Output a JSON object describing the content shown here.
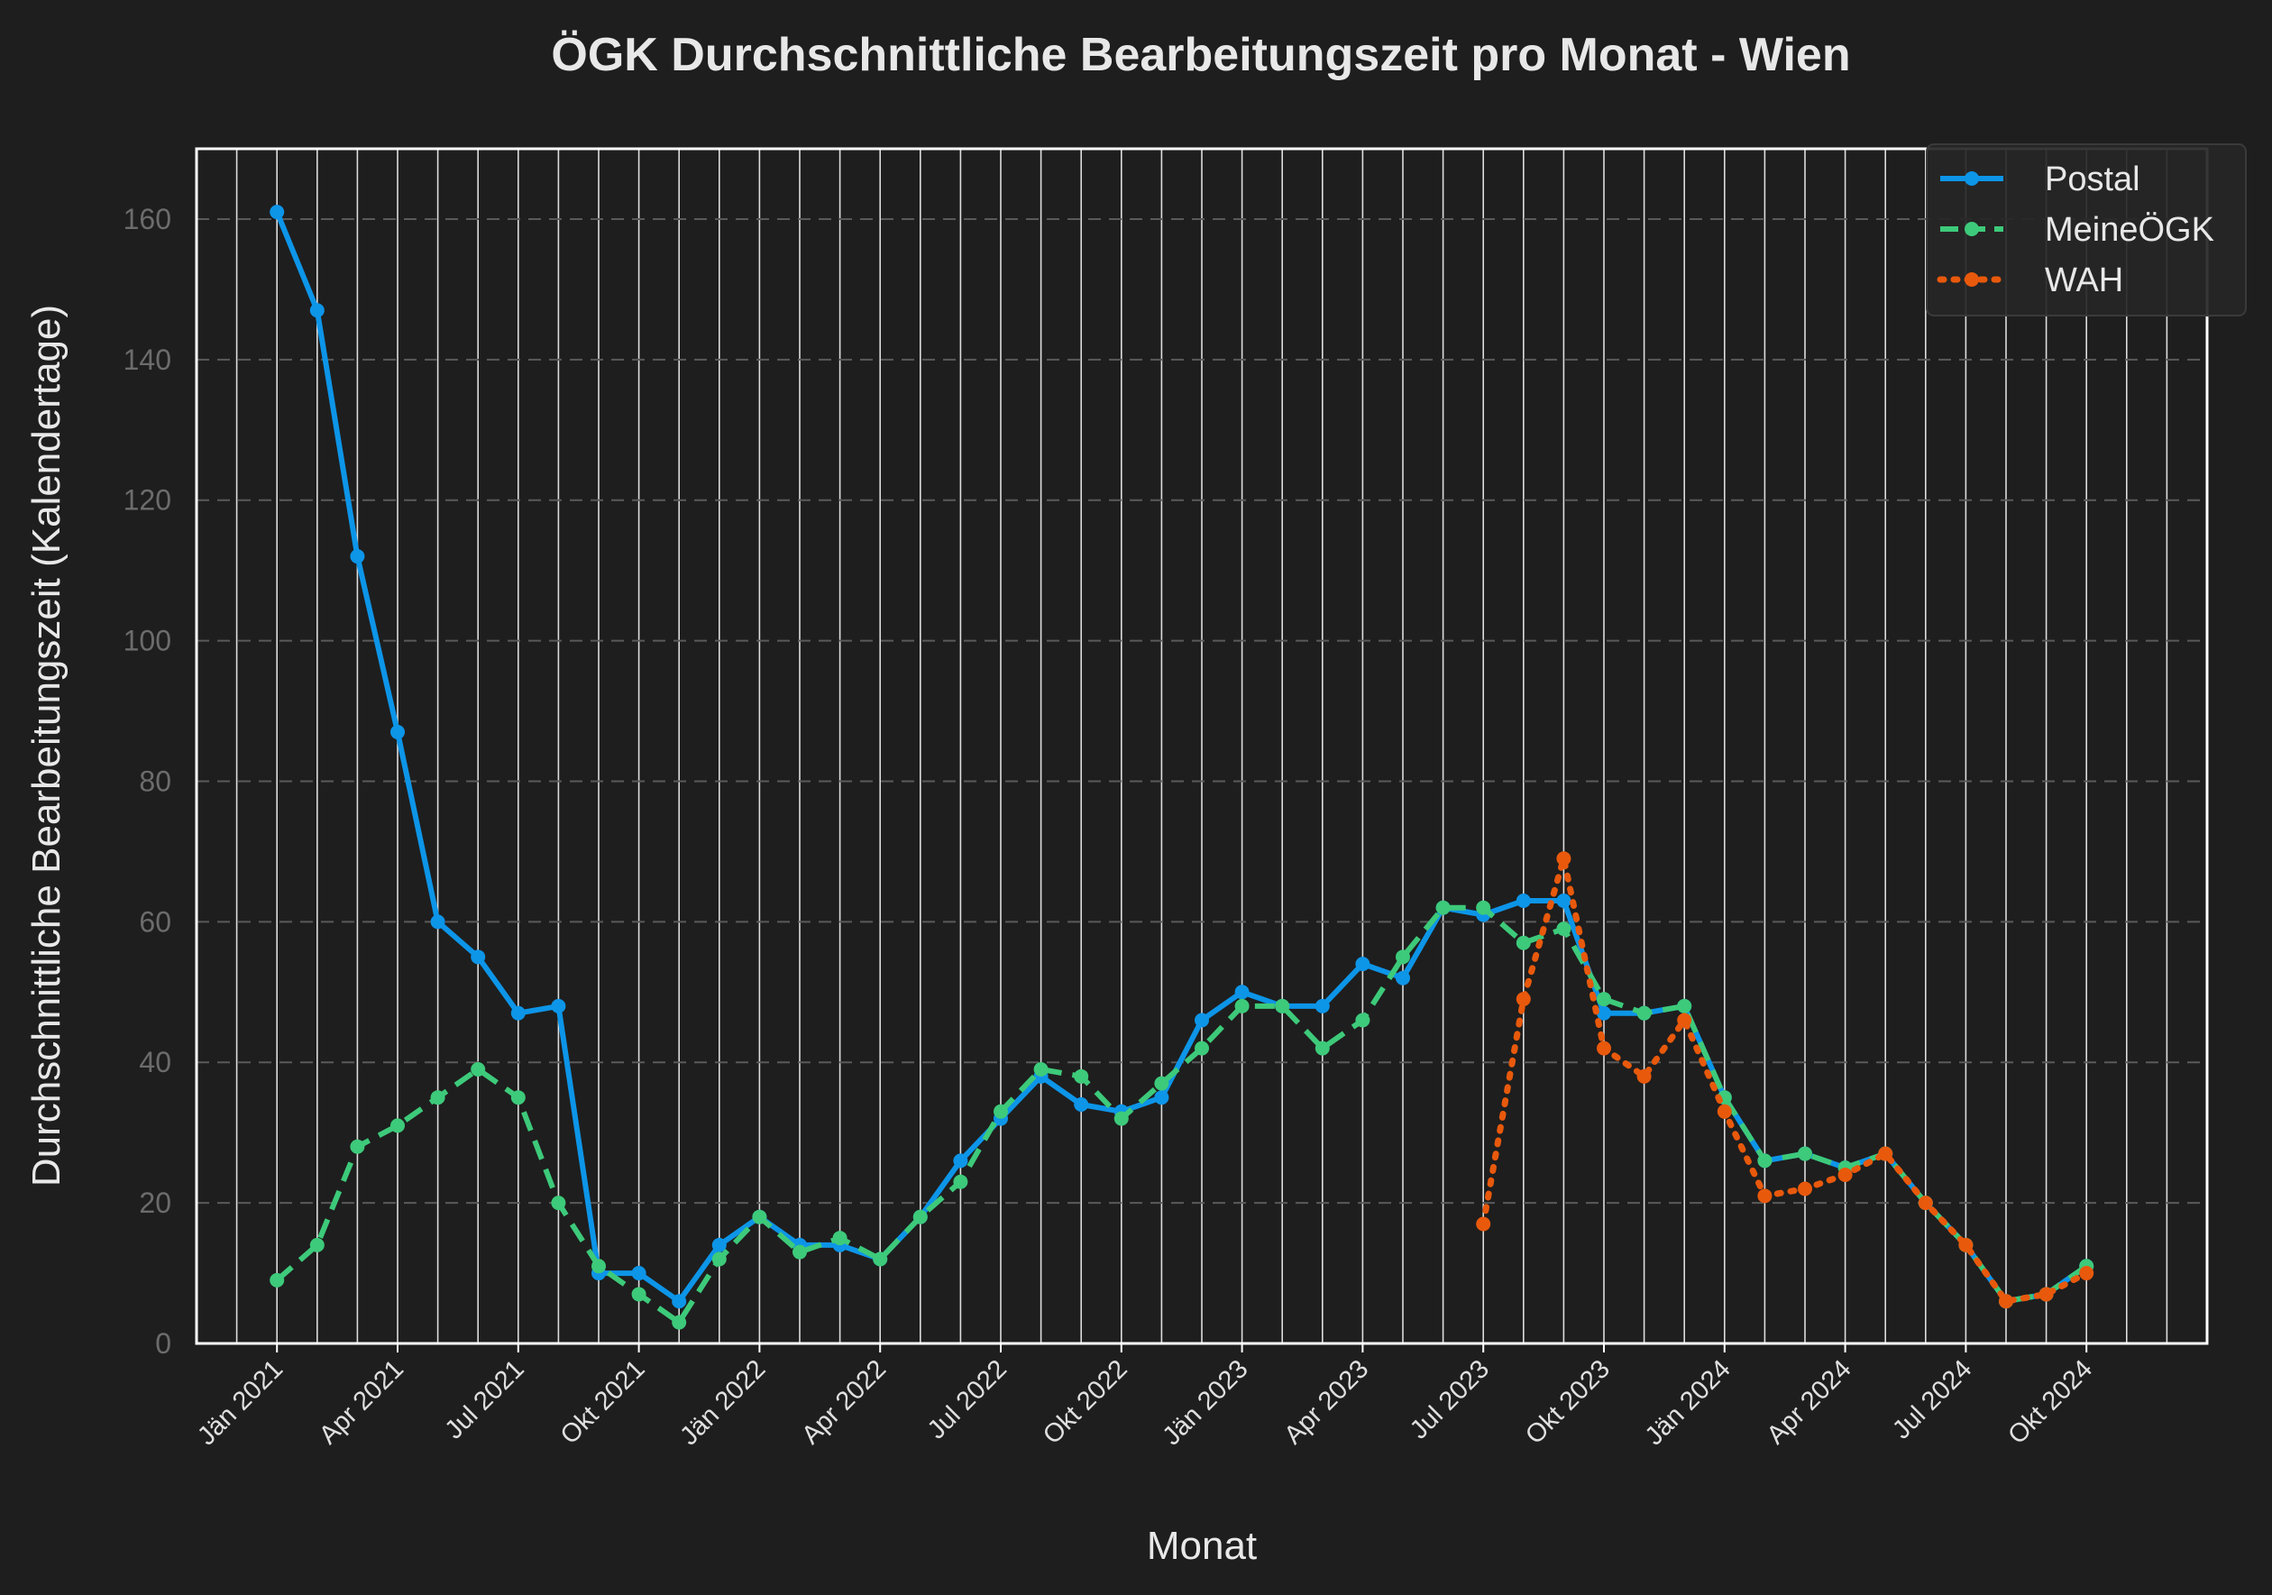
{
  "chart_data": {
    "type": "line",
    "title": "ÖGK Durchschnittliche Bearbeitungszeit pro Monat - Wien",
    "xlabel": "Monat",
    "ylabel": "Durchschnittliche Bearbeitungszeit (Kalendertage)",
    "x_range": [
      "2020-11",
      "2025-01"
    ],
    "ylim": [
      0,
      170
    ],
    "y_ticks": [
      0,
      20,
      40,
      60,
      80,
      100,
      120,
      140,
      160
    ],
    "x_ticks": [
      {
        "date": "2021-01",
        "label": "Jän 2021"
      },
      {
        "date": "2021-04",
        "label": "Apr 2021"
      },
      {
        "date": "2021-07",
        "label": "Jul 2021"
      },
      {
        "date": "2021-10",
        "label": "Okt 2021"
      },
      {
        "date": "2022-01",
        "label": "Jän 2022"
      },
      {
        "date": "2022-04",
        "label": "Apr 2022"
      },
      {
        "date": "2022-07",
        "label": "Jul 2022"
      },
      {
        "date": "2022-10",
        "label": "Okt 2022"
      },
      {
        "date": "2023-01",
        "label": "Jän 2023"
      },
      {
        "date": "2023-04",
        "label": "Apr 2023"
      },
      {
        "date": "2023-07",
        "label": "Jul 2023"
      },
      {
        "date": "2023-10",
        "label": "Okt 2023"
      },
      {
        "date": "2024-01",
        "label": "Jän 2024"
      },
      {
        "date": "2024-04",
        "label": "Apr 2024"
      },
      {
        "date": "2024-07",
        "label": "Jul 2024"
      },
      {
        "date": "2024-10",
        "label": "Okt 2024"
      }
    ],
    "grid": {
      "x": "monthly vertical lines",
      "y": "dashed horizontal lines"
    },
    "legend_position": "top-right",
    "series": [
      {
        "name": "Postal",
        "color": "#0d95e8",
        "style": "solid",
        "x": [
          "2021-01",
          "2021-02",
          "2021-03",
          "2021-04",
          "2021-05",
          "2021-06",
          "2021-07",
          "2021-08",
          "2021-09",
          "2021-10",
          "2021-11",
          "2021-12",
          "2022-01",
          "2022-02",
          "2022-03",
          "2022-04",
          "2022-05",
          "2022-06",
          "2022-07",
          "2022-08",
          "2022-09",
          "2022-10",
          "2022-11",
          "2022-12",
          "2023-01",
          "2023-02",
          "2023-03",
          "2023-04",
          "2023-05",
          "2023-06",
          "2023-07",
          "2023-08",
          "2023-09",
          "2023-10",
          "2023-11",
          "2023-12",
          "2024-01",
          "2024-02",
          "2024-03",
          "2024-04",
          "2024-05",
          "2024-06",
          "2024-07",
          "2024-08",
          "2024-09",
          "2024-10"
        ],
        "values": [
          161,
          147,
          112,
          87,
          60,
          55,
          47,
          48,
          10,
          10,
          6,
          14,
          18,
          14,
          14,
          12,
          18,
          26,
          32,
          38,
          34,
          33,
          35,
          46,
          50,
          48,
          48,
          54,
          52,
          62,
          61,
          63,
          63,
          47,
          47,
          48,
          35,
          26,
          27,
          25,
          27,
          20,
          14,
          6,
          7,
          11
        ]
      },
      {
        "name": "MeineÖGK",
        "color": "#3dca7a",
        "style": "dashed",
        "x": [
          "2021-01",
          "2021-02",
          "2021-03",
          "2021-04",
          "2021-05",
          "2021-06",
          "2021-07",
          "2021-08",
          "2021-09",
          "2021-10",
          "2021-11",
          "2021-12",
          "2022-01",
          "2022-02",
          "2022-03",
          "2022-04",
          "2022-05",
          "2022-06",
          "2022-07",
          "2022-08",
          "2022-09",
          "2022-10",
          "2022-11",
          "2022-12",
          "2023-01",
          "2023-02",
          "2023-03",
          "2023-04",
          "2023-05",
          "2023-06",
          "2023-07",
          "2023-08",
          "2023-09",
          "2023-10",
          "2023-11",
          "2023-12",
          "2024-01",
          "2024-02",
          "2024-03",
          "2024-04",
          "2024-05",
          "2024-06",
          "2024-07",
          "2024-08",
          "2024-09",
          "2024-10"
        ],
        "values": [
          9,
          14,
          28,
          31,
          35,
          39,
          35,
          20,
          11,
          7,
          3,
          12,
          18,
          13,
          15,
          12,
          18,
          23,
          33,
          39,
          38,
          32,
          37,
          42,
          48,
          48,
          42,
          46,
          55,
          62,
          62,
          57,
          59,
          49,
          47,
          48,
          35,
          26,
          27,
          25,
          27,
          20,
          14,
          6,
          7,
          11
        ]
      },
      {
        "name": "WAH",
        "color": "#e8590c",
        "style": "dotted",
        "x": [
          "2023-07",
          "2023-08",
          "2023-09",
          "2023-10",
          "2023-11",
          "2023-12",
          "2024-01",
          "2024-02",
          "2024-03",
          "2024-04",
          "2024-05",
          "2024-06",
          "2024-07",
          "2024-08",
          "2024-09",
          "2024-10"
        ],
        "values": [
          17,
          49,
          69,
          42,
          38,
          46,
          33,
          21,
          22,
          24,
          27,
          20,
          14,
          6,
          7,
          10
        ]
      }
    ]
  }
}
